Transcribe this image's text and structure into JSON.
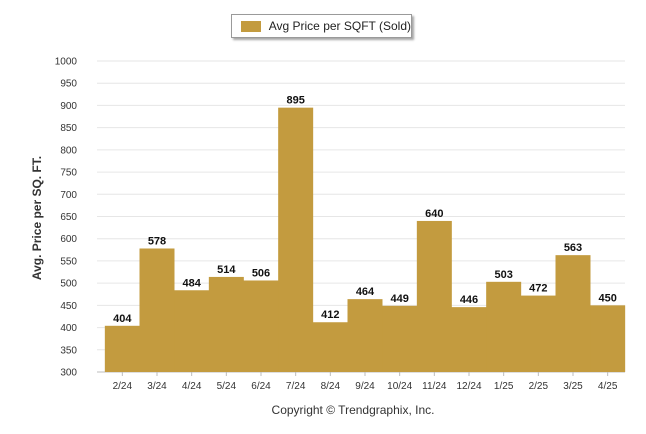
{
  "legend": {
    "label": "Avg Price per SQFT (Sold)"
  },
  "credit": "Copyright © Trendgraphix, Inc.",
  "colors": {
    "bar": "#C39B3F",
    "grid": "#e6e6e6",
    "axis": "#bdbdbd"
  },
  "chart_data": {
    "type": "bar",
    "categories": [
      "2/24",
      "3/24",
      "4/24",
      "5/24",
      "6/24",
      "7/24",
      "8/24",
      "9/24",
      "10/24",
      "11/24",
      "12/24",
      "1/25",
      "2/25",
      "3/25",
      "4/25"
    ],
    "series": [
      {
        "name": "Avg Price per SQFT (Sold)",
        "values": [
          404,
          578,
          484,
          514,
          506,
          895,
          412,
          464,
          449,
          640,
          446,
          503,
          472,
          563,
          450
        ]
      }
    ],
    "ylabel": "Avg. Price per SQ. FT.",
    "xlabel": "",
    "ylim": [
      300,
      1000
    ],
    "yticks": [
      300,
      350,
      400,
      450,
      500,
      550,
      600,
      650,
      700,
      750,
      800,
      850,
      900,
      950,
      1000
    ],
    "grid": true,
    "legend_position": "top-center"
  }
}
